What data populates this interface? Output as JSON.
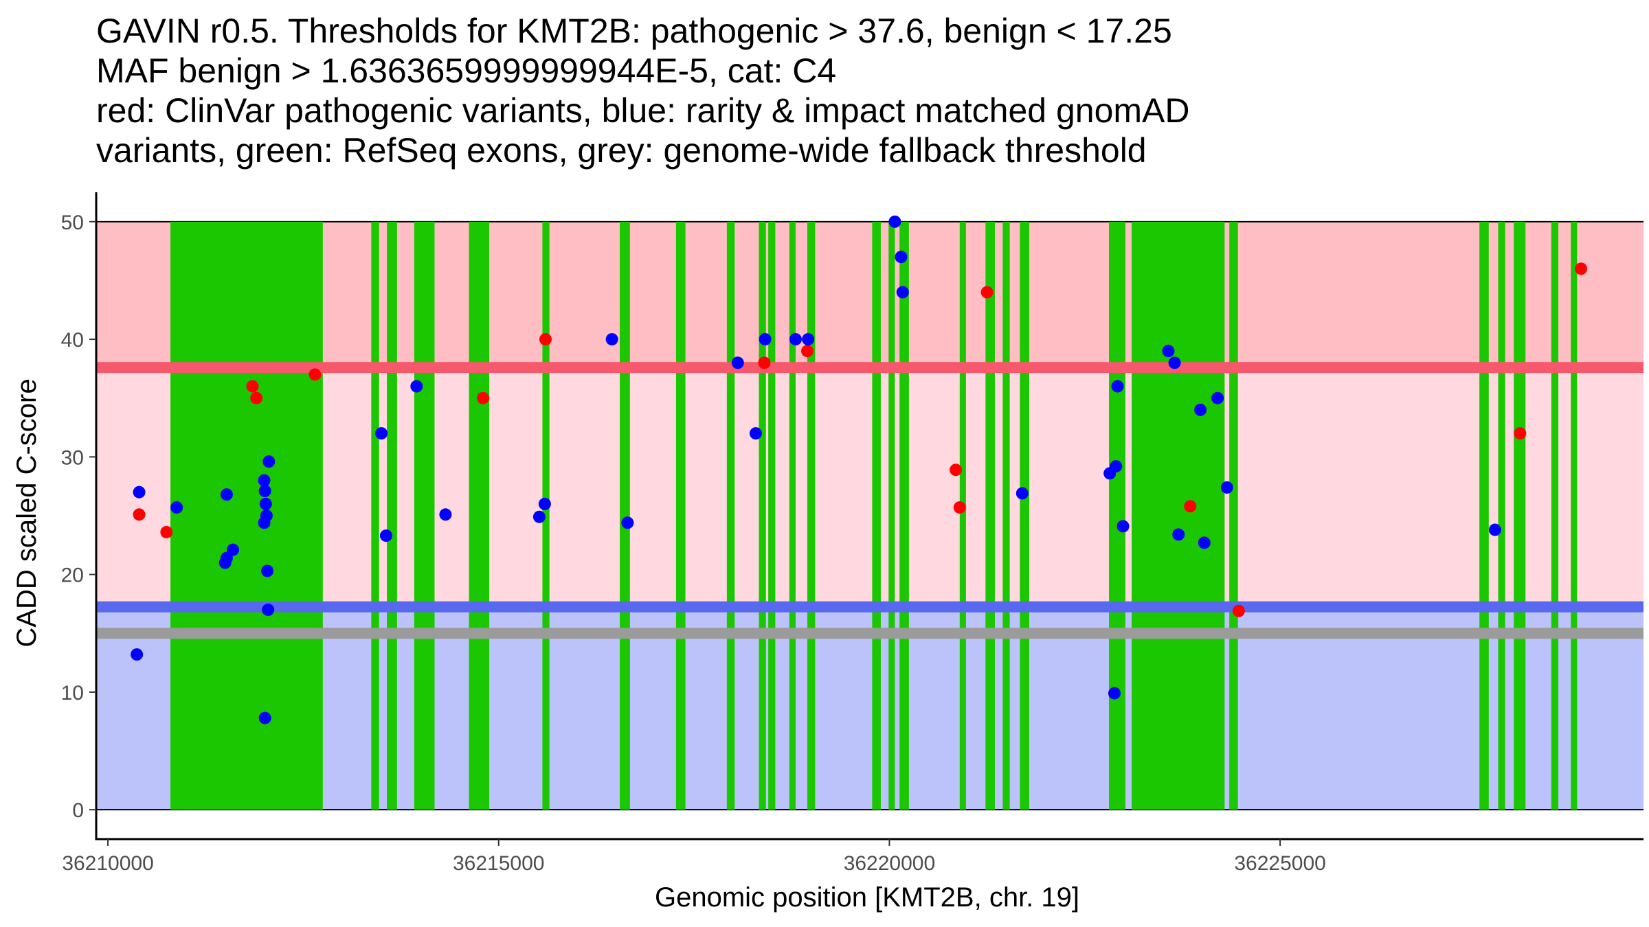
{
  "chart_data": {
    "type": "scatter",
    "title_lines": [
      "GAVIN r0.5. Thresholds for KMT2B: pathogenic > 37.6, benign < 17.25",
      "MAF benign > 1.6363659999999944E-5, cat: C4",
      "red: ClinVar pathogenic variants, blue: rarity & impact matched gnomAD",
      "variants, green: RefSeq exons, grey: genome-wide fallback threshold"
    ],
    "xlabel": "Genomic position [KMT2B, chr. 19]",
    "ylabel": "CADD scaled C-score",
    "xlim": [
      36209850,
      36229650
    ],
    "ylim": [
      -2.5,
      52.5
    ],
    "x_ticks": [
      36210000,
      36215000,
      36220000,
      36225000
    ],
    "y_ticks": [
      0,
      10,
      20,
      30,
      40,
      50
    ],
    "thresholds": {
      "pathogenic": 37.6,
      "benign": 17.25,
      "fallback": 15.0
    },
    "regions": [
      {
        "name": "pathogenic zone",
        "from": 37.6,
        "to": 50,
        "color": "#ffbdc4"
      },
      {
        "name": "uncertain zone",
        "from": 17.25,
        "to": 37.6,
        "color": "#ffd9df"
      },
      {
        "name": "benign zone",
        "from": 0,
        "to": 17.25,
        "color": "#bcc2fa"
      }
    ],
    "threshold_lines": [
      {
        "name": "pathogenic threshold",
        "y": 37.6,
        "color": "#f6596b"
      },
      {
        "name": "benign threshold",
        "y": 17.25,
        "color": "#5869f0"
      },
      {
        "name": "genome-wide fallback threshold",
        "y": 15.0,
        "color": "#9b9b9b"
      }
    ],
    "exon_color": "#1bc700",
    "exons": [
      [
        36210800,
        36212750
      ],
      [
        36213370,
        36213470
      ],
      [
        36213570,
        36213700
      ],
      [
        36213920,
        36214180
      ],
      [
        36214620,
        36214880
      ],
      [
        36215560,
        36215650
      ],
      [
        36216550,
        36216680
      ],
      [
        36217270,
        36217390
      ],
      [
        36217920,
        36218020
      ],
      [
        36218330,
        36218420
      ],
      [
        36218450,
        36218540
      ],
      [
        36218720,
        36218800
      ],
      [
        36218950,
        36219050
      ],
      [
        36219780,
        36219890
      ],
      [
        36219990,
        36220070
      ],
      [
        36220130,
        36220250
      ],
      [
        36220900,
        36220980
      ],
      [
        36221230,
        36221350
      ],
      [
        36221450,
        36221540
      ],
      [
        36221670,
        36221790
      ],
      [
        36222810,
        36223020
      ],
      [
        36223100,
        36224290
      ],
      [
        36224350,
        36224460
      ],
      [
        36227550,
        36227670
      ],
      [
        36227790,
        36227880
      ],
      [
        36227990,
        36228140
      ],
      [
        36228470,
        36228560
      ],
      [
        36228720,
        36228800
      ]
    ],
    "series": [
      {
        "name": "ClinVar pathogenic variants",
        "color": "#ff0000",
        "points": [
          [
            36210400,
            25.1
          ],
          [
            36210750,
            23.6
          ],
          [
            36211850,
            36.0
          ],
          [
            36211900,
            35.0
          ],
          [
            36212650,
            37.0
          ],
          [
            36214800,
            35.0
          ],
          [
            36215600,
            40.0
          ],
          [
            36218400,
            38.0
          ],
          [
            36218950,
            39.0
          ],
          [
            36220850,
            28.9
          ],
          [
            36220900,
            25.7
          ],
          [
            36221250,
            44.0
          ],
          [
            36223850,
            25.8
          ],
          [
            36224470,
            16.9
          ],
          [
            36228070,
            32.0
          ],
          [
            36228850,
            46.0
          ]
        ]
      },
      {
        "name": "rarity & impact matched gnomAD variants",
        "color": "#0000ff",
        "points": [
          [
            36210400,
            27.0
          ],
          [
            36210370,
            13.2
          ],
          [
            36210880,
            25.7
          ],
          [
            36211520,
            26.8
          ],
          [
            36211520,
            21.4
          ],
          [
            36211500,
            21.0
          ],
          [
            36211600,
            22.1
          ],
          [
            36212000,
            28.0
          ],
          [
            36212010,
            27.1
          ],
          [
            36212020,
            26.0
          ],
          [
            36212030,
            25.0
          ],
          [
            36212000,
            24.4
          ],
          [
            36212060,
            29.6
          ],
          [
            36212040,
            20.3
          ],
          [
            36212050,
            17.0
          ],
          [
            36212010,
            7.8
          ],
          [
            36213500,
            32.0
          ],
          [
            36213560,
            23.3
          ],
          [
            36213950,
            36.0
          ],
          [
            36214320,
            25.1
          ],
          [
            36215520,
            24.9
          ],
          [
            36215590,
            26.0
          ],
          [
            36216450,
            40.0
          ],
          [
            36216650,
            24.4
          ],
          [
            36218060,
            38.0
          ],
          [
            36218290,
            32.0
          ],
          [
            36218410,
            40.0
          ],
          [
            36218800,
            40.0
          ],
          [
            36218960,
            40.0
          ],
          [
            36220070,
            50.0
          ],
          [
            36220150,
            47.0
          ],
          [
            36220170,
            44.0
          ],
          [
            36221700,
            26.9
          ],
          [
            36222820,
            28.6
          ],
          [
            36222900,
            29.2
          ],
          [
            36222920,
            36.0
          ],
          [
            36222990,
            24.1
          ],
          [
            36222880,
            9.9
          ],
          [
            36223570,
            39.0
          ],
          [
            36223650,
            38.0
          ],
          [
            36223700,
            23.4
          ],
          [
            36223980,
            34.0
          ],
          [
            36224030,
            22.7
          ],
          [
            36224200,
            35.0
          ],
          [
            36224320,
            27.4
          ],
          [
            36227750,
            23.8
          ]
        ]
      }
    ]
  }
}
